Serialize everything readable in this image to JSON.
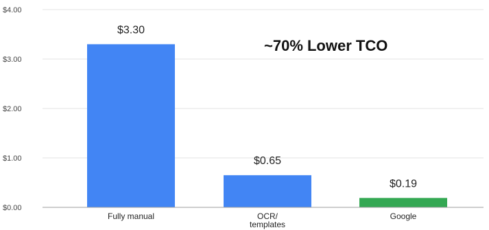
{
  "chart_data": {
    "type": "bar",
    "title": "",
    "xlabel": "",
    "ylabel": "",
    "categories": [
      [
        "Fully manual"
      ],
      [
        "OCR/",
        "templates"
      ],
      [
        "Google"
      ]
    ],
    "values": [
      3.3,
      0.65,
      0.19
    ],
    "data_labels": [
      "$3.30",
      "$0.65",
      "$0.19"
    ],
    "bar_colors": [
      "#4285F4",
      "#4285F4",
      "#34A853"
    ],
    "ylim": [
      0,
      4
    ],
    "yticks": [
      0,
      1,
      2,
      3,
      4
    ],
    "ytick_labels": [
      "$0.00",
      "$1.00",
      "$2.00",
      "$3.00",
      "$4.00"
    ],
    "grid": true,
    "legend": "none",
    "annotation": "~70% Lower TCO"
  }
}
